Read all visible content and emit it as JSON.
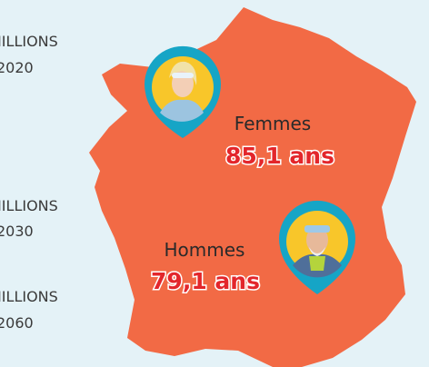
{
  "stats": [
    {
      "unit": "MILLIONS",
      "year": "2020"
    },
    {
      "unit": "MILLIONS",
      "year": "2030"
    },
    {
      "unit": "MILLIONS",
      "year": "2060"
    }
  ],
  "labels": [
    {
      "name": "Femmes",
      "value": "85,1 ans"
    },
    {
      "name": "Hommes",
      "value": "79,1 ans"
    }
  ]
}
